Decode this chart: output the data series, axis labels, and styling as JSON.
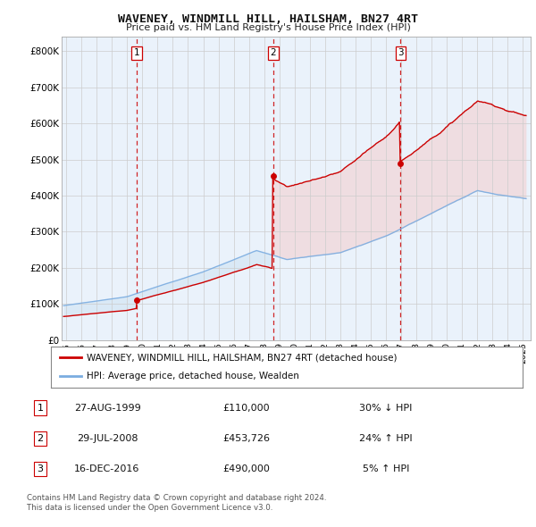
{
  "title": "WAVENEY, WINDMILL HILL, HAILSHAM, BN27 4RT",
  "subtitle": "Price paid vs. HM Land Registry's House Price Index (HPI)",
  "legend_red": "WAVENEY, WINDMILL HILL, HAILSHAM, BN27 4RT (detached house)",
  "legend_blue": "HPI: Average price, detached house, Wealden",
  "table_rows": [
    {
      "num": "1",
      "date": "27-AUG-1999",
      "price": "£110,000",
      "pct": "30% ↓ HPI"
    },
    {
      "num": "2",
      "date": "29-JUL-2008",
      "price": "£453,726",
      "pct": "24% ↑ HPI"
    },
    {
      "num": "3",
      "date": "16-DEC-2016",
      "price": "£490,000",
      "pct": "5% ↑ HPI"
    }
  ],
  "footnote1": "Contains HM Land Registry data © Crown copyright and database right 2024.",
  "footnote2": "This data is licensed under the Open Government Licence v3.0.",
  "red_color": "#cc0000",
  "blue_color": "#7aace0",
  "fill_blue": "#d0e4f4",
  "fill_red": "#f4d0d0",
  "dashed_color": "#cc0000",
  "sale_years": [
    1999.65,
    2008.58,
    2016.96
  ],
  "sale_prices": [
    110000,
    453726,
    490000
  ],
  "sale_labels": [
    "1",
    "2",
    "3"
  ],
  "ylim": [
    0,
    840000
  ],
  "xlim_start": 1994.7,
  "xlim_end": 2025.5,
  "yticks": [
    0,
    100000,
    200000,
    300000,
    400000,
    500000,
    600000,
    700000,
    800000
  ],
  "ytick_labels": [
    "£0",
    "£100K",
    "£200K",
    "£300K",
    "£400K",
    "£500K",
    "£600K",
    "£700K",
    "£800K"
  ],
  "xtick_years": [
    1995,
    1996,
    1997,
    1998,
    1999,
    2000,
    2001,
    2002,
    2003,
    2004,
    2005,
    2006,
    2007,
    2008,
    2009,
    2010,
    2011,
    2012,
    2013,
    2014,
    2015,
    2016,
    2017,
    2018,
    2019,
    2020,
    2021,
    2022,
    2023,
    2024,
    2025
  ],
  "background_color": "#ffffff",
  "grid_color": "#cccccc",
  "chart_bg": "#eaf2fb"
}
